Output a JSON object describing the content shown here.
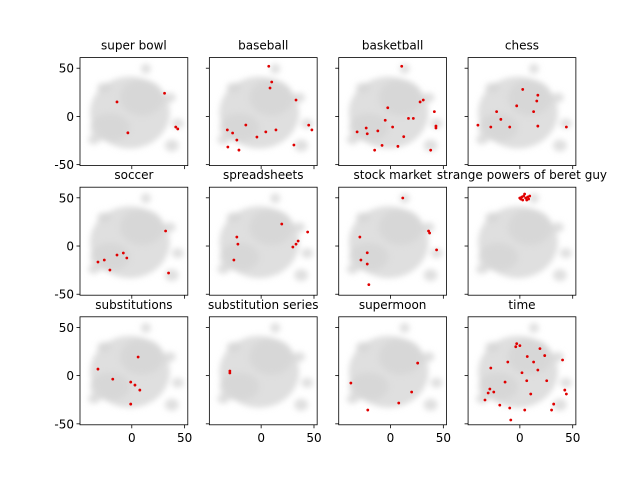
{
  "chart_data": [
    {
      "type": "scatter",
      "title": "super bowl",
      "color": "#e00000",
      "xlim": [
        -49,
        53
      ],
      "ylim": [
        -51,
        61
      ],
      "xticks": [
        0,
        50
      ],
      "yticks": [
        -50,
        0,
        50
      ],
      "x": [
        -14,
        -3.7,
        31,
        43.5,
        41.6
      ],
      "values": [
        15,
        -17,
        24,
        -13,
        -11
      ]
    },
    {
      "type": "scatter",
      "title": "baseball",
      "color": "#e00000",
      "xlim": [
        -49,
        53
      ],
      "ylim": [
        -51,
        61
      ],
      "xticks": [
        0,
        50
      ],
      "yticks": [
        -50,
        0,
        50
      ],
      "x": [
        7.2,
        10,
        8.4,
        -14.5,
        33,
        45,
        48,
        -32,
        -27,
        -23,
        -31.5,
        -21,
        4.4,
        14,
        31,
        -4
      ],
      "values": [
        52,
        35.7,
        29.5,
        -8.9,
        17,
        -9,
        -14,
        -14,
        -17.2,
        -24.5,
        -31.7,
        -34.9,
        -16,
        -14,
        -29.7,
        -21.4
      ]
    },
    {
      "type": "scatter",
      "title": "basketball",
      "color": "#e00000",
      "xlim": [
        -49,
        53
      ],
      "ylim": [
        -51,
        61
      ],
      "xticks": [
        0,
        50
      ],
      "yticks": [
        -50,
        0,
        50
      ],
      "x": [
        10.6,
        -2.6,
        -23,
        -22,
        -12,
        -5,
        2,
        7,
        -15,
        -8,
        17,
        21.6,
        28,
        31,
        41.5,
        43,
        43,
        38,
        12.5,
        -31.6
      ],
      "values": [
        52,
        9,
        -12,
        -18,
        -15,
        -4,
        -11,
        -31,
        -35,
        -30,
        -2,
        -2,
        15,
        17,
        5,
        -10,
        -12,
        -35,
        -21,
        -16
      ]
    },
    {
      "type": "scatter",
      "title": "chess",
      "color": "#e00000",
      "xlim": [
        -49,
        53
      ],
      "ylim": [
        -51,
        61
      ],
      "xticks": [
        0,
        50
      ],
      "yticks": [
        -50,
        0,
        50
      ],
      "x": [
        -27.5,
        -22,
        -18,
        -9.6,
        -3,
        2.7,
        13,
        16,
        17,
        17,
        44,
        -39.7
      ],
      "values": [
        -11,
        5,
        -3,
        -11,
        11,
        28,
        5,
        16,
        22,
        -10,
        -11,
        -9
      ]
    },
    {
      "type": "scatter",
      "title": "soccer",
      "color": "#e00000",
      "xlim": [
        -49,
        53
      ],
      "ylim": [
        -51,
        61
      ],
      "xticks": [
        0,
        50
      ],
      "yticks": [
        -50,
        0,
        50
      ],
      "x": [
        -32,
        -26,
        -20.7,
        -14,
        -8,
        -4.7,
        32,
        34.8
      ],
      "values": [
        -16.6,
        -14.5,
        -24.9,
        -9.3,
        -7.3,
        -12.4,
        15.6,
        -28
      ]
    },
    {
      "type": "scatter",
      "title": "spreadsheets",
      "color": "#e00000",
      "xlim": [
        -49,
        53
      ],
      "ylim": [
        -51,
        61
      ],
      "xticks": [
        0,
        50
      ],
      "yticks": [
        -50,
        0,
        50
      ],
      "x": [
        -23,
        -22,
        -25.8,
        19.5,
        33,
        35,
        44,
        30
      ],
      "values": [
        9.3,
        2,
        -14.5,
        22.8,
        2,
        5.2,
        14.5,
        -1
      ]
    },
    {
      "type": "scatter",
      "title": "stock market",
      "color": "#e00000",
      "xlim": [
        -49,
        53
      ],
      "ylim": [
        -51,
        61
      ],
      "xticks": [
        0,
        50
      ],
      "yticks": [
        -50,
        0,
        50
      ],
      "x": [
        11.6,
        -29,
        -28,
        -22,
        -20.5,
        36,
        37,
        43.6,
        -22
      ],
      "values": [
        49.8,
        9.3,
        -14.5,
        -18.7,
        -40,
        15.6,
        13.5,
        -4,
        -7
      ]
    },
    {
      "type": "scatter",
      "title": "strange powers of beret guy",
      "color": "#e00000",
      "xlim": [
        -49,
        53
      ],
      "ylim": [
        -51,
        61
      ],
      "xticks": [
        0,
        50
      ],
      "yticks": [
        -50,
        0,
        50
      ],
      "x": [
        0.8,
        3.6,
        7.4,
        6.5,
        2.7,
        9.3,
        4.5,
        -0.1,
        8.3,
        5.5,
        1.8
      ],
      "values": [
        48.8,
        51.9,
        50.8,
        47.7,
        47.7,
        51.9,
        53.9,
        49.8,
        48.8,
        49.8,
        50.8
      ]
    },
    {
      "type": "scatter",
      "title": "substitutions",
      "color": "#e00000",
      "xlim": [
        -49,
        53
      ],
      "ylim": [
        -51,
        61
      ],
      "xticks": [
        0,
        50
      ],
      "yticks": [
        -50,
        0,
        50
      ],
      "x": [
        -32,
        -18,
        -1,
        3,
        6,
        -1,
        7.6
      ],
      "values": [
        6.8,
        -3.6,
        -6.7,
        -9.8,
        19.3,
        -29.5,
        -15
      ]
    },
    {
      "type": "scatter",
      "title": "substitution series",
      "color": "#e00000",
      "xlim": [
        -49,
        53
      ],
      "ylim": [
        -51,
        61
      ],
      "xticks": [
        0,
        50
      ],
      "yticks": [
        -50,
        0,
        50
      ],
      "x": [
        -29.6,
        -29.6
      ],
      "values": [
        4.8,
        2.7
      ]
    },
    {
      "type": "scatter",
      "title": "supermoon",
      "color": "#e00000",
      "xlim": [
        -49,
        53
      ],
      "ylim": [
        -51,
        61
      ],
      "xticks": [
        0,
        50
      ],
      "yticks": [
        -50,
        0,
        50
      ],
      "x": [
        -37.5,
        -21.5,
        7.8,
        20,
        25.7
      ],
      "values": [
        -7.7,
        -35.7,
        -28.4,
        -17,
        13
      ]
    },
    {
      "type": "scatter",
      "title": "time",
      "color": "#e00000",
      "xlim": [
        -49,
        53
      ],
      "ylim": [
        -51,
        61
      ],
      "xticks": [
        0,
        50
      ],
      "yticks": [
        -50,
        0,
        50
      ],
      "x": [
        -27.5,
        -28.4,
        -24.7,
        -14,
        -9.6,
        -8.6,
        -3.9,
        -3,
        0,
        2,
        6.5,
        10.3,
        13,
        19,
        23.5,
        25.4,
        30,
        40.4,
        42.5,
        44,
        32,
        4.6,
        -19,
        -33,
        -11.4,
        7,
        17,
        -30
      ],
      "values": [
        7.9,
        -13.9,
        -17,
        -6.7,
        -33.6,
        -46,
        30,
        33.2,
        31.1,
        3,
        -5.3,
        -19.1,
        14.1,
        28,
        20.8,
        -5.3,
        -35.7,
        16.2,
        -15,
        -19.1,
        -29.5,
        -35.7,
        -30.6,
        -25.3,
        14.1,
        19.8,
        5.8,
        -18
      ]
    }
  ]
}
